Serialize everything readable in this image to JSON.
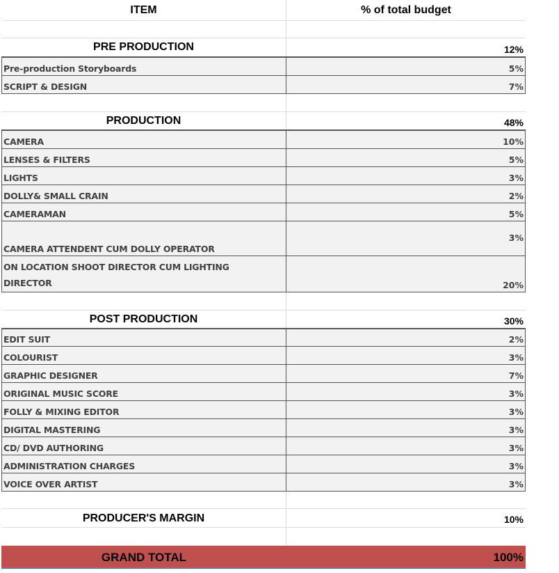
{
  "header": {
    "item": "ITEM",
    "percent": "% of total budget"
  },
  "sections": {
    "pre": {
      "title": "PRE PRODUCTION",
      "percent": "12%",
      "items": [
        {
          "label": "Pre-production Storyboards",
          "percent": "5%"
        },
        {
          "label": "SCRIPT & DESIGN",
          "percent": "7%"
        }
      ]
    },
    "production": {
      "title": "PRODUCTION",
      "percent": "48%",
      "items": [
        {
          "label": "CAMERA",
          "percent": "10%"
        },
        {
          "label": "LENSES & FILTERS",
          "percent": "5%"
        },
        {
          "label": "LIGHTS",
          "percent": "3%"
        },
        {
          "label": "DOLLY& SMALL CRAIN",
          "percent": "2%"
        },
        {
          "label": "CAMERAMAN",
          "percent": "5%"
        },
        {
          "label": "CAMERA ATTENDENT CUM DOLLY OPERATOR",
          "percent": "3%"
        },
        {
          "label_line1": "ON LOCATION SHOOT DIRECTOR CUM LIGHTING",
          "label_line2": "DIRECTOR",
          "percent": "20%"
        }
      ]
    },
    "post": {
      "title": "POST PRODUCTION",
      "percent": "30%",
      "items": [
        {
          "label": "EDIT SUIT",
          "percent": "2%"
        },
        {
          "label": "COLOURIST",
          "percent": "3%"
        },
        {
          "label": "GRAPHIC DESIGNER",
          "percent": "7%"
        },
        {
          "label": "ORIGINAL MUSIC SCORE",
          "percent": "3%"
        },
        {
          "label": "FOLLY & MIXING EDITOR",
          "percent": "3%"
        },
        {
          "label": "DIGITAL MASTERING",
          "percent": "3%"
        },
        {
          "label": "CD/ DVD AUTHORING",
          "percent": "3%"
        },
        {
          "label": "ADMINISTRATION CHARGES",
          "percent": "3%"
        },
        {
          "label": "VOICE OVER ARTIST",
          "percent": "3%"
        }
      ]
    },
    "margin": {
      "title": "PRODUCER'S MARGIN",
      "percent": "10%"
    }
  },
  "grand_total": {
    "label": "GRAND TOTAL",
    "percent": "100%"
  },
  "colors": {
    "grand_total_bg": "#c0504d",
    "item_bg": "#f2f2f2",
    "grid_line": "#d9dce6",
    "bottom_border": "#4f81bd"
  }
}
